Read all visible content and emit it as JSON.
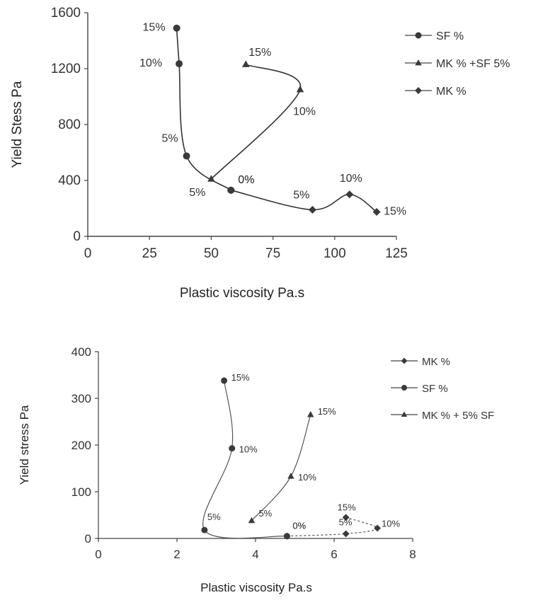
{
  "chart_data": [
    {
      "type": "line",
      "xlabel": "Plastic viscosity Pa.s",
      "ylabel": "Yield Stess  Pa",
      "xlim": [
        0,
        125
      ],
      "ylim": [
        0,
        1600
      ],
      "xticks": [
        "0",
        "25",
        "50",
        "75",
        "100",
        "125"
      ],
      "yticks": [
        "0",
        "400",
        "800",
        "1200",
        "1600"
      ],
      "legend_position": "top-right",
      "series": [
        {
          "name": "SF %",
          "marker": "circle",
          "points": [
            {
              "x": 58,
              "y": 330,
              "label": "0%"
            },
            {
              "x": 40,
              "y": 575,
              "label": "5%"
            },
            {
              "x": 37,
              "y": 1235,
              "label": "10%"
            },
            {
              "x": 36,
              "y": 1490,
              "label": "15%"
            }
          ]
        },
        {
          "name": "MK % + SF 5%",
          "legend_text": "MK % +SF 5%",
          "marker": "triangle",
          "points": [
            {
              "x": 50,
              "y": 410,
              "label": "5%"
            },
            {
              "x": 86,
              "y": 1050,
              "label": "10%"
            },
            {
              "x": 64,
              "y": 1230,
              "label": "15%"
            }
          ]
        },
        {
          "name": "MK %",
          "marker": "diamond",
          "points": [
            {
              "x": 58,
              "y": 330,
              "label": "0%"
            },
            {
              "x": 91,
              "y": 190,
              "label": "5%"
            },
            {
              "x": 106,
              "y": 300,
              "label": "10%"
            },
            {
              "x": 117,
              "y": 175,
              "label": "15%"
            }
          ]
        }
      ]
    },
    {
      "type": "line",
      "xlabel": "Plastic viscosity  Pa.s",
      "ylabel": "Yield stress Pa",
      "xlim": [
        0,
        8
      ],
      "ylim": [
        0,
        400
      ],
      "xticks": [
        "0",
        "2",
        "4",
        "6",
        "8"
      ],
      "yticks": [
        "0",
        "100",
        "200",
        "300",
        "400"
      ],
      "legend_position": "top-right",
      "series": [
        {
          "name": "MK %",
          "marker": "diamond",
          "points": [
            {
              "x": 4.8,
              "y": 5,
              "label": "0%"
            },
            {
              "x": 6.3,
              "y": 10,
              "label": "5%"
            },
            {
              "x": 7.1,
              "y": 22,
              "label": "10%"
            },
            {
              "x": 6.3,
              "y": 45,
              "label": "15%"
            }
          ]
        },
        {
          "name": "SF %",
          "marker": "circle",
          "points": [
            {
              "x": 4.8,
              "y": 5,
              "label": "0%"
            },
            {
              "x": 2.7,
              "y": 18,
              "label": "5%"
            },
            {
              "x": 3.4,
              "y": 193,
              "label": "10%"
            },
            {
              "x": 3.2,
              "y": 338,
              "label": "15%"
            }
          ]
        },
        {
          "name": "MK % + 5% SF",
          "marker": "triangle",
          "points": [
            {
              "x": 3.9,
              "y": 38,
              "label": "5%"
            },
            {
              "x": 4.9,
              "y": 133,
              "label": "10%"
            },
            {
              "x": 5.4,
              "y": 265,
              "label": "15%"
            }
          ]
        }
      ]
    }
  ]
}
